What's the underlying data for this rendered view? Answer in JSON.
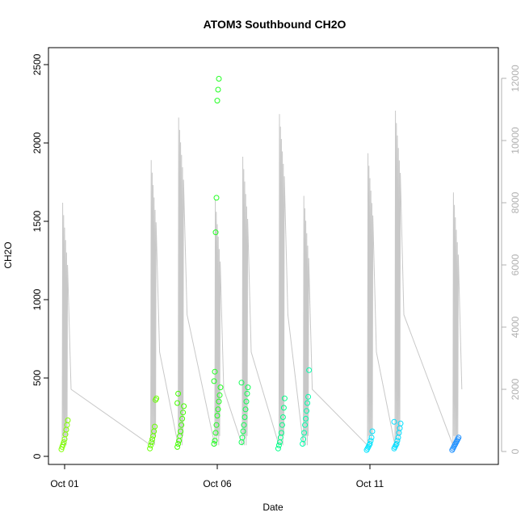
{
  "chart_data": {
    "type": "scatter",
    "title": "ATOM3 Southbound CH2O",
    "xlabel": "Date",
    "ylabel": "CH2O",
    "x_ticks": [
      "Oct 01",
      "Oct 06",
      "Oct 11"
    ],
    "y_ticks": [
      0,
      500,
      1000,
      1500,
      2000,
      2500
    ],
    "y2_ticks": [
      0,
      2000,
      4000,
      6000,
      8000,
      10000,
      12000
    ],
    "xlim": [
      "2017-10-01",
      "2017-10-14"
    ],
    "ylim": [
      0,
      2500
    ],
    "y2lim": [
      0,
      12000
    ],
    "colors": {
      "altitude_line": "#c8c8c8",
      "axis": "#000000",
      "right_axis": "#b0b0b0"
    },
    "series": [
      {
        "x": "2017-10-01.0",
        "color": "#7fff00",
        "values": [
          45,
          60,
          75,
          90,
          110,
          140,
          170,
          200,
          230
        ]
      },
      {
        "x": "2017-10-03.9",
        "color": "#66ff00",
        "values": [
          50,
          70,
          90,
          110,
          130,
          160,
          190,
          360,
          370
        ]
      },
      {
        "x": "2017-10-04.8",
        "color": "#44ff00",
        "values": [
          60,
          80,
          100,
          130,
          160,
          200,
          240,
          280,
          320,
          340,
          400
        ]
      },
      {
        "x": "2017-10-06.0",
        "color": "#22ff22",
        "values": [
          80,
          100,
          150,
          200,
          260,
          300,
          350,
          390,
          440,
          480,
          540,
          1430,
          1650,
          2270,
          2340,
          2410
        ]
      },
      {
        "x": "2017-10-06.9",
        "color": "#11ff55",
        "values": [
          90,
          120,
          160,
          200,
          250,
          300,
          350,
          400,
          440,
          470
        ]
      },
      {
        "x": "2017-10-08.1",
        "color": "#00ff88",
        "values": [
          50,
          70,
          90,
          120,
          150,
          200,
          250,
          310,
          370
        ]
      },
      {
        "x": "2017-10-08.9",
        "color": "#00ffaa",
        "values": [
          80,
          110,
          150,
          200,
          240,
          290,
          340,
          380,
          550
        ]
      },
      {
        "x": "2017-10-11.0",
        "color": "#00e5ff",
        "values": [
          40,
          50,
          60,
          70,
          80,
          100,
          120,
          160
        ]
      },
      {
        "x": "2017-10-11.9",
        "color": "#00ddff",
        "values": [
          50,
          60,
          70,
          80,
          100,
          120,
          150,
          180,
          210,
          220
        ]
      },
      {
        "x": "2017-10-13.8",
        "color": "#1e90ff",
        "values": [
          40,
          50,
          60,
          70,
          80,
          90,
          100,
          110,
          120
        ]
      }
    ]
  }
}
